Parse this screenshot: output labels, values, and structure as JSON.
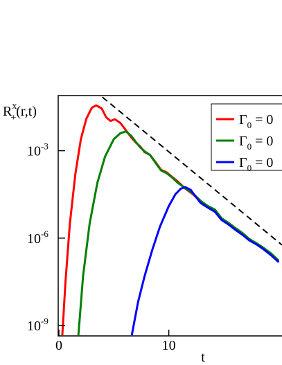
{
  "chart_data": {
    "type": "line",
    "ylabel": {
      "main": "R",
      "sup": "x",
      "sub": "+",
      "rest": "(r,t)"
    },
    "xlabel": "t",
    "xlim": [
      0,
      20.3
    ],
    "xticks": [
      0,
      10
    ],
    "ylim": [
      4.4e-10,
      0.078
    ],
    "ylog": true,
    "yticks": [
      {
        "value": 0.001,
        "label": "10",
        "exponent": "-3"
      },
      {
        "value": 1e-06,
        "label": "10",
        "exponent": "-6"
      },
      {
        "value": 1e-09,
        "label": "10",
        "exponent": "-9"
      }
    ],
    "legend": "upper right",
    "series": [
      {
        "name": "Γ",
        "name_sub": "0",
        "name_rest": " = 0",
        "color": "#ff0000",
        "x": [
          0.3,
          0.6,
          1.0,
          1.5,
          2.0,
          2.5,
          3.0,
          3.4,
          3.9,
          4.3,
          4.7,
          5.1,
          5.6,
          6.1,
          6.6,
          7.0,
          7.4,
          7.8,
          8.3,
          8.8,
          9.3,
          9.8,
          10.3,
          10.8,
          11.5,
          12.2,
          12.9,
          13.5,
          14.2,
          14.8,
          15.4,
          16.0,
          16.7,
          17.3,
          18.0,
          18.6,
          19.3,
          20.0
        ],
        "values": [
          4e-10,
          3.2e-08,
          3.2e-06,
          0.00016,
          0.0025,
          0.0126,
          0.03,
          0.036,
          0.028,
          0.014,
          0.0105,
          0.012,
          0.0089,
          0.005,
          0.0028,
          0.0019,
          0.0014,
          0.00089,
          0.00071,
          0.0004,
          0.00022,
          0.00018,
          0.000126,
          8.9e-05,
          5e-05,
          3.2e-05,
          1.8e-05,
          1.2e-05,
          8.9e-06,
          4.5e-06,
          3.2e-06,
          2.2e-06,
          1.4e-06,
          8.9e-07,
          6.3e-07,
          4.5e-07,
          2.8e-07,
          1.6e-07
        ]
      },
      {
        "name": "Γ",
        "name_sub": "0",
        "name_rest": " = 0",
        "color": "#008000",
        "x": [
          1.76,
          2.2,
          2.8,
          3.5,
          4.2,
          5.0,
          5.6,
          6.1,
          6.6,
          7.0,
          7.4,
          7.8,
          8.3,
          8.8,
          9.3,
          9.8,
          10.3,
          10.8,
          11.5,
          12.2,
          12.9,
          13.5,
          14.2,
          14.8,
          15.4,
          16.0,
          16.7,
          17.3,
          18.0,
          18.6,
          19.3,
          20.0
        ],
        "values": [
          4e-10,
          5e-08,
          3.2e-06,
          7.9e-05,
          0.00063,
          0.0025,
          0.004,
          0.0046,
          0.0032,
          0.002,
          0.0013,
          0.00095,
          0.00071,
          0.00038,
          0.00021,
          0.00017,
          0.00012,
          8e-05,
          5.2e-05,
          3.4e-05,
          1.9e-05,
          1.3e-05,
          9.5e-06,
          4.8e-06,
          3.4e-06,
          2.3e-06,
          1.5e-06,
          9.5e-07,
          6.6e-07,
          4.7e-07,
          3e-07,
          1.7e-07
        ]
      },
      {
        "name": "Γ",
        "name_sub": "0",
        "name_rest": " = 0",
        "color": "#0000ff",
        "x": [
          6.6,
          7.2,
          7.8,
          8.5,
          9.2,
          10.0,
          10.6,
          11.1,
          11.5,
          12.0,
          12.5,
          12.9,
          13.5,
          14.2,
          14.8,
          15.4,
          16.0,
          16.7,
          17.3,
          18.0,
          18.6,
          19.3,
          20.0
        ],
        "values": [
          4e-10,
          6.3e-09,
          5e-08,
          4e-07,
          2.5e-06,
          1.26e-05,
          3.2e-05,
          5e-05,
          5.6e-05,
          4.5e-05,
          2.5e-05,
          1.6e-05,
          1.15e-05,
          8e-06,
          4.2e-06,
          3e-06,
          2e-06,
          1.3e-06,
          8.5e-07,
          6e-07,
          4.2e-07,
          2.6e-07,
          1.5e-07
        ]
      },
      {
        "color": "#000000",
        "dash": true,
        "x": [
          3.96,
          20.3
        ],
        "values": [
          0.069,
          5.8e-07
        ]
      }
    ]
  }
}
